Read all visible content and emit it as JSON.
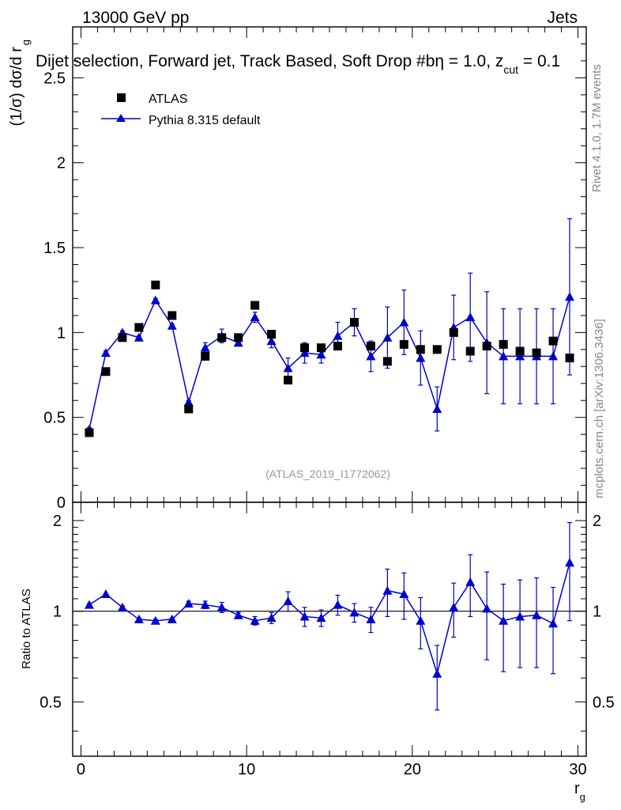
{
  "header": {
    "energy_label": "13000 GeV pp",
    "process_label": "Jets",
    "plot_title_lead": "Dijet selection, Forward jet, Track Based, Soft Drop #b",
    "plot_title_beta": "η = 1.0, z",
    "plot_title_cut": "cut",
    "plot_title_tail": " = 0.1",
    "analysis_id": "(ATLAS_2019_I1772062)",
    "rivet_label": "Rivet 4.1.0,  1.7M events",
    "mcplots_label": "mcplots.cern.ch [arXiv:1306.3436]"
  },
  "chart_data": [
    {
      "type": "scatter",
      "panel": "main",
      "ylabel_main": "(1/σ) dσ/d r",
      "ylabel_sub": "g",
      "ylim": [
        0,
        2.8
      ],
      "yticks": [
        "0",
        "0.5",
        "1",
        "1.5",
        "2",
        "2.5"
      ],
      "legend": {
        "position": "top-left",
        "entries": [
          {
            "label": "ATLAS",
            "marker": "square",
            "color": "#000000"
          },
          {
            "label": "Pythia 8.315 default",
            "marker": "triangle-line",
            "color": "#0000cc"
          }
        ]
      },
      "x": [
        0.5,
        1.5,
        2.5,
        3.5,
        4.5,
        5.5,
        6.5,
        7.5,
        8.5,
        9.5,
        10.5,
        11.5,
        12.5,
        13.5,
        14.5,
        15.5,
        16.5,
        17.5,
        18.5,
        19.5,
        20.5,
        21.5,
        22.5,
        23.5,
        24.5,
        25.5,
        26.5,
        27.5,
        28.5,
        29.5
      ],
      "series": [
        {
          "name": "ATLAS",
          "values": [
            0.41,
            0.77,
            0.97,
            1.03,
            1.28,
            1.1,
            0.55,
            0.86,
            0.97,
            0.97,
            1.16,
            0.99,
            0.72,
            0.91,
            0.91,
            0.92,
            1.06,
            0.92,
            0.83,
            0.93,
            0.9,
            0.9,
            1.0,
            0.89,
            0.92,
            0.93,
            0.89,
            0.88,
            0.95,
            0.85
          ]
        },
        {
          "name": "Pythia 8.315 default",
          "values": [
            0.43,
            0.88,
            1.0,
            0.97,
            1.19,
            1.04,
            0.59,
            0.91,
            0.98,
            0.94,
            1.09,
            0.95,
            0.79,
            0.88,
            0.87,
            0.98,
            1.06,
            0.86,
            0.97,
            1.06,
            0.85,
            0.55,
            1.03,
            1.09,
            0.94,
            0.86,
            0.86,
            0.86,
            0.86,
            1.21
          ],
          "errors": [
            0.01,
            0.01,
            0.01,
            0.01,
            0.01,
            0.01,
            0.01,
            0.03,
            0.04,
            0.02,
            0.03,
            0.04,
            0.06,
            0.06,
            0.05,
            0.08,
            0.08,
            0.09,
            0.18,
            0.19,
            0.16,
            0.13,
            0.19,
            0.26,
            0.3,
            0.28,
            0.28,
            0.28,
            0.28,
            0.46
          ]
        }
      ]
    },
    {
      "type": "scatter",
      "panel": "ratio",
      "ylabel": "Ratio to ATLAS",
      "xlabel_main": "r",
      "xlabel_sub": "g",
      "xlim": [
        -0.5,
        30.5
      ],
      "xticks": [
        "0",
        "10",
        "20",
        "30"
      ],
      "ylim": [
        0.33,
        2.3
      ],
      "yticks": [
        "0.5",
        "1",
        "2"
      ],
      "reference_line": 1,
      "x": [
        0.5,
        1.5,
        2.5,
        3.5,
        4.5,
        5.5,
        6.5,
        7.5,
        8.5,
        9.5,
        10.5,
        11.5,
        12.5,
        13.5,
        14.5,
        15.5,
        16.5,
        17.5,
        18.5,
        19.5,
        20.5,
        21.5,
        22.5,
        23.5,
        24.5,
        25.5,
        26.5,
        27.5,
        28.5,
        29.5
      ],
      "series": [
        {
          "name": "Pythia 8.315 default / ATLAS",
          "values": [
            1.05,
            1.14,
            1.03,
            0.94,
            0.93,
            0.94,
            1.06,
            1.05,
            1.03,
            0.97,
            0.93,
            0.95,
            1.08,
            0.96,
            0.95,
            1.05,
            0.99,
            0.94,
            1.17,
            1.14,
            0.93,
            0.62,
            1.03,
            1.25,
            1.02,
            0.93,
            0.96,
            0.97,
            0.91,
            1.45
          ],
          "errors": [
            0.01,
            0.01,
            0.01,
            0.01,
            0.01,
            0.01,
            0.02,
            0.03,
            0.04,
            0.02,
            0.03,
            0.04,
            0.08,
            0.07,
            0.06,
            0.08,
            0.07,
            0.09,
            0.21,
            0.2,
            0.18,
            0.15,
            0.21,
            0.29,
            0.33,
            0.3,
            0.31,
            0.32,
            0.29,
            0.52
          ]
        }
      ]
    }
  ]
}
